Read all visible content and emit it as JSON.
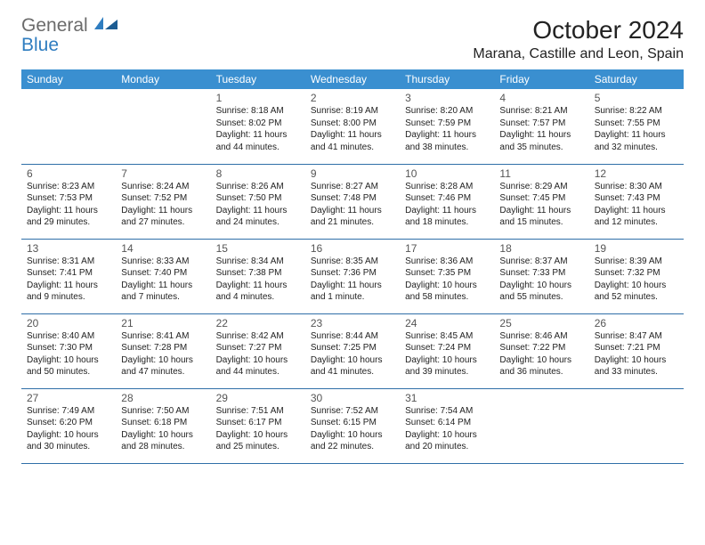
{
  "brand": {
    "line1": "General",
    "line2": "Blue"
  },
  "title": "October 2024",
  "location": "Marana, Castille and Leon, Spain",
  "colors": {
    "header_bg": "#3a8fd0",
    "header_text": "#ffffff",
    "row_border": "#2f6fa8",
    "brand_gray": "#6b6b6b",
    "brand_blue": "#2f7dc0"
  },
  "day_headers": [
    "Sunday",
    "Monday",
    "Tuesday",
    "Wednesday",
    "Thursday",
    "Friday",
    "Saturday"
  ],
  "weeks": [
    [
      null,
      null,
      {
        "n": "1",
        "sr": "8:18 AM",
        "ss": "8:02 PM",
        "dl": "11 hours and 44 minutes."
      },
      {
        "n": "2",
        "sr": "8:19 AM",
        "ss": "8:00 PM",
        "dl": "11 hours and 41 minutes."
      },
      {
        "n": "3",
        "sr": "8:20 AM",
        "ss": "7:59 PM",
        "dl": "11 hours and 38 minutes."
      },
      {
        "n": "4",
        "sr": "8:21 AM",
        "ss": "7:57 PM",
        "dl": "11 hours and 35 minutes."
      },
      {
        "n": "5",
        "sr": "8:22 AM",
        "ss": "7:55 PM",
        "dl": "11 hours and 32 minutes."
      }
    ],
    [
      {
        "n": "6",
        "sr": "8:23 AM",
        "ss": "7:53 PM",
        "dl": "11 hours and 29 minutes."
      },
      {
        "n": "7",
        "sr": "8:24 AM",
        "ss": "7:52 PM",
        "dl": "11 hours and 27 minutes."
      },
      {
        "n": "8",
        "sr": "8:26 AM",
        "ss": "7:50 PM",
        "dl": "11 hours and 24 minutes."
      },
      {
        "n": "9",
        "sr": "8:27 AM",
        "ss": "7:48 PM",
        "dl": "11 hours and 21 minutes."
      },
      {
        "n": "10",
        "sr": "8:28 AM",
        "ss": "7:46 PM",
        "dl": "11 hours and 18 minutes."
      },
      {
        "n": "11",
        "sr": "8:29 AM",
        "ss": "7:45 PM",
        "dl": "11 hours and 15 minutes."
      },
      {
        "n": "12",
        "sr": "8:30 AM",
        "ss": "7:43 PM",
        "dl": "11 hours and 12 minutes."
      }
    ],
    [
      {
        "n": "13",
        "sr": "8:31 AM",
        "ss": "7:41 PM",
        "dl": "11 hours and 9 minutes."
      },
      {
        "n": "14",
        "sr": "8:33 AM",
        "ss": "7:40 PM",
        "dl": "11 hours and 7 minutes."
      },
      {
        "n": "15",
        "sr": "8:34 AM",
        "ss": "7:38 PM",
        "dl": "11 hours and 4 minutes."
      },
      {
        "n": "16",
        "sr": "8:35 AM",
        "ss": "7:36 PM",
        "dl": "11 hours and 1 minute."
      },
      {
        "n": "17",
        "sr": "8:36 AM",
        "ss": "7:35 PM",
        "dl": "10 hours and 58 minutes."
      },
      {
        "n": "18",
        "sr": "8:37 AM",
        "ss": "7:33 PM",
        "dl": "10 hours and 55 minutes."
      },
      {
        "n": "19",
        "sr": "8:39 AM",
        "ss": "7:32 PM",
        "dl": "10 hours and 52 minutes."
      }
    ],
    [
      {
        "n": "20",
        "sr": "8:40 AM",
        "ss": "7:30 PM",
        "dl": "10 hours and 50 minutes."
      },
      {
        "n": "21",
        "sr": "8:41 AM",
        "ss": "7:28 PM",
        "dl": "10 hours and 47 minutes."
      },
      {
        "n": "22",
        "sr": "8:42 AM",
        "ss": "7:27 PM",
        "dl": "10 hours and 44 minutes."
      },
      {
        "n": "23",
        "sr": "8:44 AM",
        "ss": "7:25 PM",
        "dl": "10 hours and 41 minutes."
      },
      {
        "n": "24",
        "sr": "8:45 AM",
        "ss": "7:24 PM",
        "dl": "10 hours and 39 minutes."
      },
      {
        "n": "25",
        "sr": "8:46 AM",
        "ss": "7:22 PM",
        "dl": "10 hours and 36 minutes."
      },
      {
        "n": "26",
        "sr": "8:47 AM",
        "ss": "7:21 PM",
        "dl": "10 hours and 33 minutes."
      }
    ],
    [
      {
        "n": "27",
        "sr": "7:49 AM",
        "ss": "6:20 PM",
        "dl": "10 hours and 30 minutes."
      },
      {
        "n": "28",
        "sr": "7:50 AM",
        "ss": "6:18 PM",
        "dl": "10 hours and 28 minutes."
      },
      {
        "n": "29",
        "sr": "7:51 AM",
        "ss": "6:17 PM",
        "dl": "10 hours and 25 minutes."
      },
      {
        "n": "30",
        "sr": "7:52 AM",
        "ss": "6:15 PM",
        "dl": "10 hours and 22 minutes."
      },
      {
        "n": "31",
        "sr": "7:54 AM",
        "ss": "6:14 PM",
        "dl": "10 hours and 20 minutes."
      },
      null,
      null
    ]
  ],
  "labels": {
    "sunrise": "Sunrise:",
    "sunset": "Sunset:",
    "daylight": "Daylight:"
  }
}
